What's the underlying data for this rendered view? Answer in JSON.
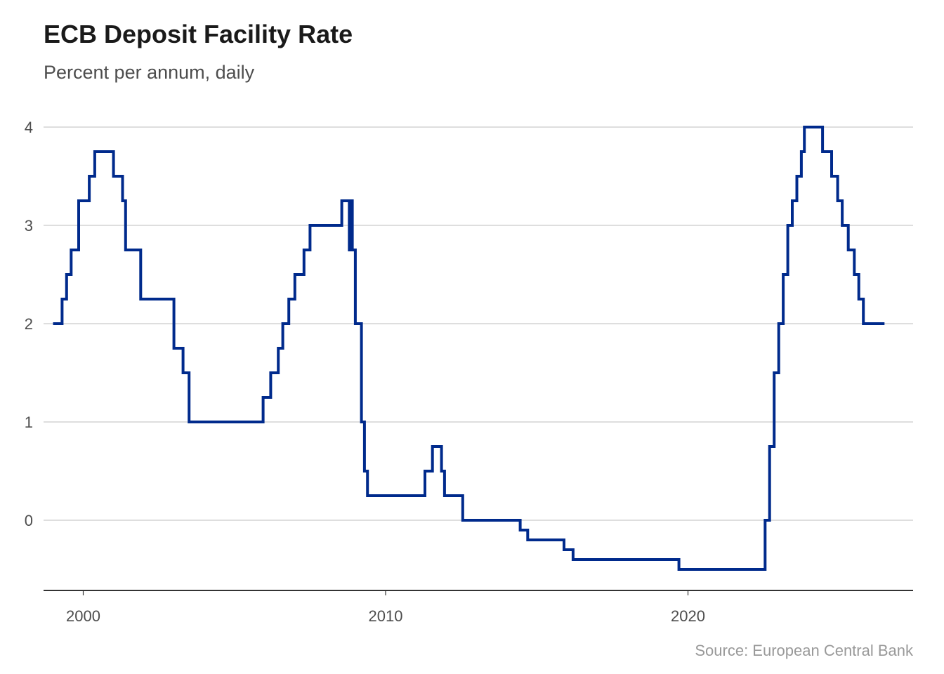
{
  "chart_data": {
    "type": "line",
    "step": true,
    "title": "ECB Deposit Facility Rate",
    "subtitle": "Percent per annum, daily",
    "caption": "Source: European Central Bank",
    "xlabel": "",
    "ylabel": "",
    "xlim": [
      1998.7,
      2027.5
    ],
    "ylim": [
      -0.72,
      4.0
    ],
    "grid": "horizontal",
    "legend": "none",
    "color": "#002a8c",
    "xticks": [
      2000,
      2010,
      2020
    ],
    "xtick_labels": [
      "2000",
      "2010",
      "2020"
    ],
    "yticks": [
      0,
      1,
      2,
      3,
      4
    ],
    "ytick_labels": [
      "0",
      "1",
      "2",
      "3",
      "4"
    ],
    "series": [
      {
        "name": "Deposit facility rate",
        "points": [
          [
            1999.0,
            2.0
          ],
          [
            1999.3,
            2.25
          ],
          [
            1999.45,
            2.5
          ],
          [
            1999.6,
            2.75
          ],
          [
            1999.85,
            3.25
          ],
          [
            2000.2,
            3.5
          ],
          [
            2000.38,
            3.75
          ],
          [
            2001.0,
            3.5
          ],
          [
            2001.3,
            3.25
          ],
          [
            2001.4,
            2.75
          ],
          [
            2001.9,
            2.25
          ],
          [
            2003.0,
            1.75
          ],
          [
            2003.3,
            1.5
          ],
          [
            2003.5,
            1.0
          ],
          [
            2005.95,
            1.25
          ],
          [
            2006.2,
            1.5
          ],
          [
            2006.45,
            1.75
          ],
          [
            2006.6,
            2.0
          ],
          [
            2006.8,
            2.25
          ],
          [
            2007.0,
            2.5
          ],
          [
            2007.3,
            2.75
          ],
          [
            2007.5,
            3.0
          ],
          [
            2008.55,
            3.25
          ],
          [
            2008.8,
            2.75
          ],
          [
            2008.85,
            3.25
          ],
          [
            2008.9,
            2.75
          ],
          [
            2009.0,
            2.0
          ],
          [
            2009.2,
            1.0
          ],
          [
            2009.3,
            0.5
          ],
          [
            2009.4,
            0.25
          ],
          [
            2011.3,
            0.5
          ],
          [
            2011.55,
            0.75
          ],
          [
            2011.85,
            0.5
          ],
          [
            2011.95,
            0.25
          ],
          [
            2012.55,
            0.0
          ],
          [
            2014.45,
            -0.1
          ],
          [
            2014.7,
            -0.2
          ],
          [
            2015.9,
            -0.3
          ],
          [
            2016.2,
            -0.4
          ],
          [
            2019.7,
            -0.5
          ],
          [
            2022.55,
            0.0
          ],
          [
            2022.7,
            0.75
          ],
          [
            2022.85,
            1.5
          ],
          [
            2023.0,
            2.0
          ],
          [
            2023.15,
            2.5
          ],
          [
            2023.3,
            3.0
          ],
          [
            2023.45,
            3.25
          ],
          [
            2023.6,
            3.5
          ],
          [
            2023.75,
            3.75
          ],
          [
            2023.85,
            4.0
          ],
          [
            2024.45,
            3.75
          ],
          [
            2024.75,
            3.5
          ],
          [
            2024.95,
            3.25
          ],
          [
            2025.1,
            3.0
          ],
          [
            2025.3,
            2.75
          ],
          [
            2025.5,
            2.5
          ],
          [
            2025.65,
            2.25
          ],
          [
            2025.8,
            2.0
          ],
          [
            2026.5,
            2.0
          ]
        ]
      }
    ]
  }
}
